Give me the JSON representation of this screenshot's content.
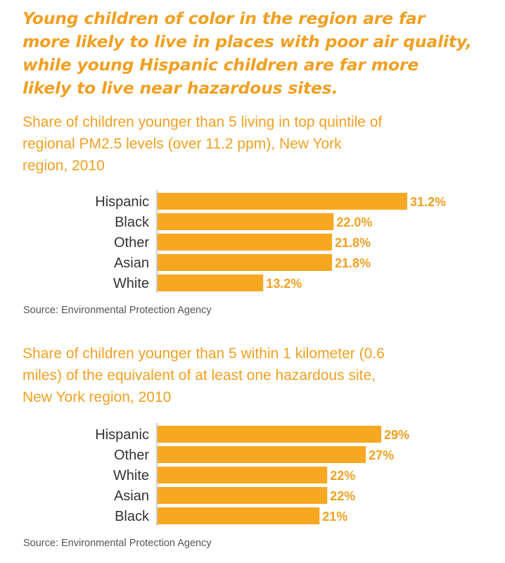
{
  "headline": "Young children of color in the region are far more likely to live in places with poor air quality, while young Hispanic children are far more likely to live near hazardous sites.",
  "colors": {
    "bar": "#f8a721",
    "accent_text": "#f0a023",
    "label_text": "#333333",
    "value_text": "#f0a023",
    "axis": "#999999",
    "source_text": "#555555"
  },
  "chart_data": [
    {
      "type": "bar",
      "orientation": "horizontal",
      "title": "Share of children younger than 5 living in top quintile of regional PM2.5 levels (over 11.2 ppm), New York region, 2010",
      "categories": [
        "Hispanic",
        "Black",
        "Other",
        "Asian",
        "White"
      ],
      "values": [
        31.2,
        22.0,
        21.8,
        21.8,
        13.2
      ],
      "value_labels": [
        "31.2%",
        "22.0%",
        "21.8%",
        "21.8%",
        "13.2%"
      ],
      "source": "Source: Environmental Protection Agency",
      "xlim": [
        0,
        31.2
      ]
    },
    {
      "type": "bar",
      "orientation": "horizontal",
      "title": "Share of children younger than 5 within 1 kilometer (0.6 miles) of the equivalent of at least one hazardous site, New York region, 2010",
      "categories": [
        "Hispanic",
        "Other",
        "White",
        "Asian",
        "Black"
      ],
      "values": [
        29,
        27,
        22,
        22,
        21
      ],
      "value_labels": [
        "29%",
        "27%",
        "22%",
        "22%",
        "21%"
      ],
      "source": "Source: Environmental Protection Agency",
      "xlim": [
        0,
        29
      ]
    }
  ]
}
